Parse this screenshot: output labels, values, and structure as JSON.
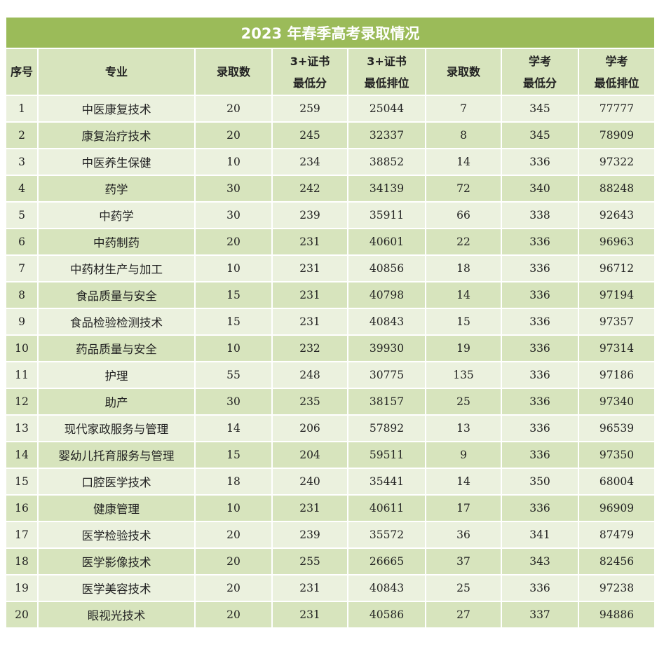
{
  "title": "2023 年春季高考录取情况",
  "headers": [
    {
      "line1": "序号",
      "line2": ""
    },
    {
      "line1": "专业",
      "line2": ""
    },
    {
      "line1": "录取数",
      "line2": ""
    },
    {
      "line1": "3+证书",
      "line2": "最低分"
    },
    {
      "line1": "3+证书",
      "line2": "最低排位"
    },
    {
      "line1": "录取数",
      "line2": ""
    },
    {
      "line1": "学考",
      "line2": "最低分"
    },
    {
      "line1": "学考",
      "line2": "最低排位"
    }
  ],
  "rows": [
    [
      "1",
      "中医康复技术",
      "20",
      "259",
      "25044",
      "7",
      "345",
      "77777"
    ],
    [
      "2",
      "康复治疗技术",
      "20",
      "245",
      "32337",
      "8",
      "345",
      "78909"
    ],
    [
      "3",
      "中医养生保健",
      "10",
      "234",
      "38852",
      "14",
      "336",
      "97322"
    ],
    [
      "4",
      "药学",
      "30",
      "242",
      "34139",
      "72",
      "340",
      "88248"
    ],
    [
      "5",
      "中药学",
      "30",
      "239",
      "35911",
      "66",
      "338",
      "92643"
    ],
    [
      "6",
      "中药制药",
      "20",
      "231",
      "40601",
      "22",
      "336",
      "96963"
    ],
    [
      "7",
      "中药材生产与加工",
      "10",
      "231",
      "40856",
      "18",
      "336",
      "96712"
    ],
    [
      "8",
      "食品质量与安全",
      "15",
      "231",
      "40798",
      "14",
      "336",
      "97194"
    ],
    [
      "9",
      "食品检验检测技术",
      "15",
      "231",
      "40843",
      "15",
      "336",
      "97357"
    ],
    [
      "10",
      "药品质量与安全",
      "10",
      "232",
      "39930",
      "19",
      "336",
      "97314"
    ],
    [
      "11",
      "护理",
      "55",
      "248",
      "30775",
      "135",
      "336",
      "97186"
    ],
    [
      "12",
      "助产",
      "30",
      "235",
      "38157",
      "25",
      "336",
      "97340"
    ],
    [
      "13",
      "现代家政服务与管理",
      "14",
      "206",
      "57892",
      "13",
      "336",
      "96539"
    ],
    [
      "14",
      "婴幼儿托育服务与管理",
      "15",
      "204",
      "59511",
      "9",
      "336",
      "97350"
    ],
    [
      "15",
      "口腔医学技术",
      "18",
      "240",
      "35441",
      "14",
      "350",
      "68004"
    ],
    [
      "16",
      "健康管理",
      "10",
      "231",
      "40611",
      "17",
      "336",
      "96909"
    ],
    [
      "17",
      "医学检验技术",
      "20",
      "239",
      "35572",
      "36",
      "341",
      "87479"
    ],
    [
      "18",
      "医学影像技术",
      "20",
      "255",
      "26665",
      "37",
      "343",
      "82456"
    ],
    [
      "19",
      "医学美容技术",
      "20",
      "231",
      "40843",
      "25",
      "336",
      "97238"
    ],
    [
      "20",
      "眼视光技术",
      "20",
      "231",
      "40586",
      "27",
      "337",
      "94886"
    ]
  ],
  "colors": {
    "title_bg": "#9bbb59",
    "header_bg": "#d7e4bd",
    "row_light": "#ebf1de",
    "row_dark": "#d7e4bd"
  }
}
